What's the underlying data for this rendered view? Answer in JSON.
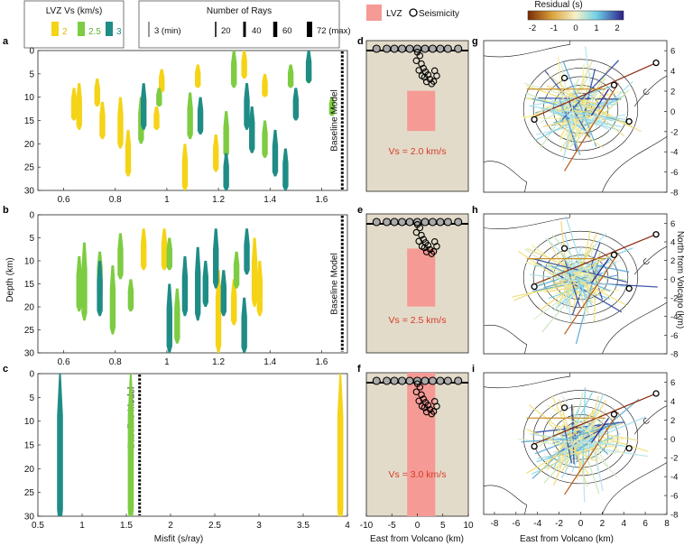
{
  "panel_letters": [
    "a",
    "b",
    "c",
    "d",
    "e",
    "f",
    "g",
    "h",
    "i"
  ],
  "legends": {
    "lvz": {
      "title": "LVZ Vs (km/s)",
      "items": [
        {
          "label": "2",
          "color": "#f5d316"
        },
        {
          "label": "2.5",
          "color": "#7dcc41"
        },
        {
          "label": "3",
          "color": "#1f8c86"
        }
      ]
    },
    "rays": {
      "title": "Number of Rays",
      "items": [
        "3 (min)",
        "20",
        "40",
        "60",
        "72 (max)"
      ]
    },
    "lvz_box": {
      "label": "LVZ",
      "color": "#f59a94"
    },
    "seismicity": {
      "label": "Seismicity"
    },
    "residual": {
      "title": "Residual (s)",
      "ticks": [
        "-2",
        "-1",
        "0",
        "1",
        "2"
      ]
    }
  },
  "labels": {
    "depth_axis": "Depth (km)",
    "misfit_axis": "Misfit (s/ray)",
    "baseline": "Baseline Model",
    "east_axis_map": "East from Volcano (km)",
    "east_axis_ray": "East from Volcano (km)",
    "north_axis": "North from Volcano (km)",
    "vs_d": "Vs = 2.0 km/s",
    "vs_e": "Vs = 2.5 km/s",
    "vs_f": "Vs = 3.0 km/s"
  },
  "chart_data": [
    {
      "panel": "a",
      "type": "scatter",
      "xlim": [
        0.5,
        1.7
      ],
      "ylim": [
        0,
        30
      ],
      "x_ticks": [
        "0.6",
        "0.8",
        "1",
        "1.2",
        "1.4",
        "1.6"
      ],
      "y_ticks": [
        "0",
        "5",
        "10",
        "15",
        "20",
        "25",
        "30"
      ],
      "baseline_misfit": 1.68,
      "bars": [
        {
          "vs": "2",
          "x": 0.64,
          "top": 8,
          "bottom": 15
        },
        {
          "vs": "2",
          "x": 0.66,
          "top": 7,
          "bottom": 17
        },
        {
          "vs": "2",
          "x": 0.73,
          "top": 6,
          "bottom": 12
        },
        {
          "vs": "2",
          "x": 0.75,
          "top": 11,
          "bottom": 19
        },
        {
          "vs": "2",
          "x": 0.82,
          "top": 10,
          "bottom": 21
        },
        {
          "vs": "2",
          "x": 0.85,
          "top": 17,
          "bottom": 27
        },
        {
          "vs": "2",
          "x": 0.96,
          "top": 12,
          "bottom": 17
        },
        {
          "vs": "2",
          "x": 0.98,
          "top": 4,
          "bottom": 9
        },
        {
          "vs": "2",
          "x": 1.07,
          "top": 20,
          "bottom": 30
        },
        {
          "vs": "2",
          "x": 1.12,
          "top": 3,
          "bottom": 8
        },
        {
          "vs": "2",
          "x": 1.19,
          "top": 18,
          "bottom": 26
        },
        {
          "vs": "2",
          "x": 1.3,
          "top": 0,
          "bottom": 6
        },
        {
          "vs": "2",
          "x": 1.38,
          "top": 5,
          "bottom": 10
        },
        {
          "vs": "2.5",
          "x": 0.9,
          "top": 10,
          "bottom": 20
        },
        {
          "vs": "2.5",
          "x": 0.97,
          "top": 8,
          "bottom": 12
        },
        {
          "vs": "2.5",
          "x": 1.09,
          "top": 9,
          "bottom": 19
        },
        {
          "vs": "2.5",
          "x": 1.23,
          "top": 13,
          "bottom": 23
        },
        {
          "vs": "2.5",
          "x": 1.26,
          "top": 0,
          "bottom": 8
        },
        {
          "vs": "2.5",
          "x": 1.38,
          "top": 15,
          "bottom": 23
        },
        {
          "vs": "2.5",
          "x": 1.48,
          "top": 3,
          "bottom": 8
        },
        {
          "vs": "2.5",
          "x": 1.55,
          "top": 2,
          "bottom": 7
        },
        {
          "vs": "2.5",
          "x": 1.64,
          "top": 10,
          "bottom": 14
        },
        {
          "vs": "3",
          "x": 0.91,
          "top": 7,
          "bottom": 17
        },
        {
          "vs": "3",
          "x": 1.13,
          "top": 10,
          "bottom": 18
        },
        {
          "vs": "3",
          "x": 1.23,
          "top": 22,
          "bottom": 30
        },
        {
          "vs": "3",
          "x": 1.31,
          "top": 7,
          "bottom": 17
        },
        {
          "vs": "3",
          "x": 1.33,
          "top": 12,
          "bottom": 22
        },
        {
          "vs": "3",
          "x": 1.42,
          "top": 17,
          "bottom": 27
        },
        {
          "vs": "3",
          "x": 1.46,
          "top": 21,
          "bottom": 30
        },
        {
          "vs": "3",
          "x": 1.5,
          "top": 8,
          "bottom": 15
        },
        {
          "vs": "3",
          "x": 1.55,
          "top": 0,
          "bottom": 7
        }
      ]
    },
    {
      "panel": "b",
      "type": "scatter",
      "xlim": [
        0.5,
        1.7
      ],
      "ylim": [
        0,
        30
      ],
      "x_ticks": [
        "0.6",
        "0.8",
        "1",
        "1.2",
        "1.4",
        "1.6"
      ],
      "y_ticks": [
        "0",
        "5",
        "10",
        "15",
        "20",
        "25",
        "30"
      ],
      "baseline_misfit": 1.68,
      "bars": [
        {
          "vs": "2",
          "x": 0.91,
          "top": 3,
          "bottom": 12
        },
        {
          "vs": "2",
          "x": 0.99,
          "top": 3,
          "bottom": 12
        },
        {
          "vs": "2",
          "x": 1.2,
          "top": 12,
          "bottom": 30
        },
        {
          "vs": "2",
          "x": 1.26,
          "top": 14,
          "bottom": 24
        },
        {
          "vs": "2",
          "x": 1.34,
          "top": 5,
          "bottom": 20
        },
        {
          "vs": "2",
          "x": 1.36,
          "top": 10,
          "bottom": 22
        },
        {
          "vs": "2.5",
          "x": 0.66,
          "top": 9,
          "bottom": 21
        },
        {
          "vs": "2.5",
          "x": 0.68,
          "top": 6,
          "bottom": 23
        },
        {
          "vs": "2.5",
          "x": 0.74,
          "top": 8,
          "bottom": 18
        },
        {
          "vs": "2.5",
          "x": 0.79,
          "top": 11,
          "bottom": 26
        },
        {
          "vs": "2.5",
          "x": 0.82,
          "top": 4,
          "bottom": 14
        },
        {
          "vs": "2.5",
          "x": 0.86,
          "top": 14,
          "bottom": 21
        },
        {
          "vs": "2.5",
          "x": 1.01,
          "top": 5,
          "bottom": 12
        },
        {
          "vs": "2.5",
          "x": 1.04,
          "top": 16,
          "bottom": 28
        },
        {
          "vs": "2.5",
          "x": 1.27,
          "top": 8,
          "bottom": 16
        },
        {
          "vs": "3",
          "x": 0.74,
          "top": 10,
          "bottom": 22
        },
        {
          "vs": "3",
          "x": 1.01,
          "top": 15,
          "bottom": 30
        },
        {
          "vs": "3",
          "x": 1.07,
          "top": 9,
          "bottom": 22
        },
        {
          "vs": "3",
          "x": 1.12,
          "top": 7,
          "bottom": 23
        },
        {
          "vs": "3",
          "x": 1.15,
          "top": 10,
          "bottom": 20
        },
        {
          "vs": "3",
          "x": 1.19,
          "top": 3,
          "bottom": 16
        },
        {
          "vs": "3",
          "x": 1.22,
          "top": 12,
          "bottom": 22
        },
        {
          "vs": "3",
          "x": 1.3,
          "top": 18,
          "bottom": 30
        },
        {
          "vs": "3",
          "x": 1.31,
          "top": 3,
          "bottom": 13
        }
      ]
    },
    {
      "panel": "c",
      "type": "scatter",
      "xlim": [
        0.5,
        4
      ],
      "ylim": [
        0,
        30
      ],
      "x_ticks": [
        "0.5",
        "1",
        "1.5",
        "2",
        "2.5",
        "3",
        "3.5",
        "4"
      ],
      "y_ticks": [
        "0",
        "5",
        "10",
        "15",
        "20",
        "25",
        "30"
      ],
      "baseline_misfit": 1.65,
      "bars": [
        {
          "vs": "3",
          "x": 0.75,
          "top": 0,
          "bottom": 30
        },
        {
          "vs": "2.5",
          "x": 1.55,
          "top": 0,
          "bottom": 30
        },
        {
          "vs": "2",
          "x": 3.92,
          "top": 0,
          "bottom": 30
        }
      ]
    },
    {
      "panel": "d-f",
      "type": "scatter",
      "xlim": [
        -10,
        10
      ],
      "ylim": [
        0,
        30
      ],
      "x_ticks": [
        "-10",
        "-5",
        "0",
        "5",
        "10"
      ],
      "lvz_boxes": [
        {
          "panel": "d",
          "x": [
            -2,
            3.5
          ],
          "depth": [
            10,
            18
          ]
        },
        {
          "panel": "e",
          "x": [
            -2,
            3.5
          ],
          "depth": [
            7.5,
            20
          ]
        },
        {
          "panel": "f",
          "x": [
            -2,
            3.5
          ],
          "depth": [
            0,
            30
          ]
        }
      ]
    },
    {
      "panel": "g-i",
      "type": "line",
      "xlim": [
        -9,
        8
      ],
      "ylim": [
        -8,
        7
      ],
      "x_ticks": [
        "-8",
        "-6",
        "-4",
        "-2",
        "0",
        "2",
        "4",
        "6",
        "8"
      ],
      "y_ticks": [
        "-8",
        "-6",
        "-4",
        "-2",
        "0",
        "2",
        "4",
        "6"
      ]
    }
  ]
}
